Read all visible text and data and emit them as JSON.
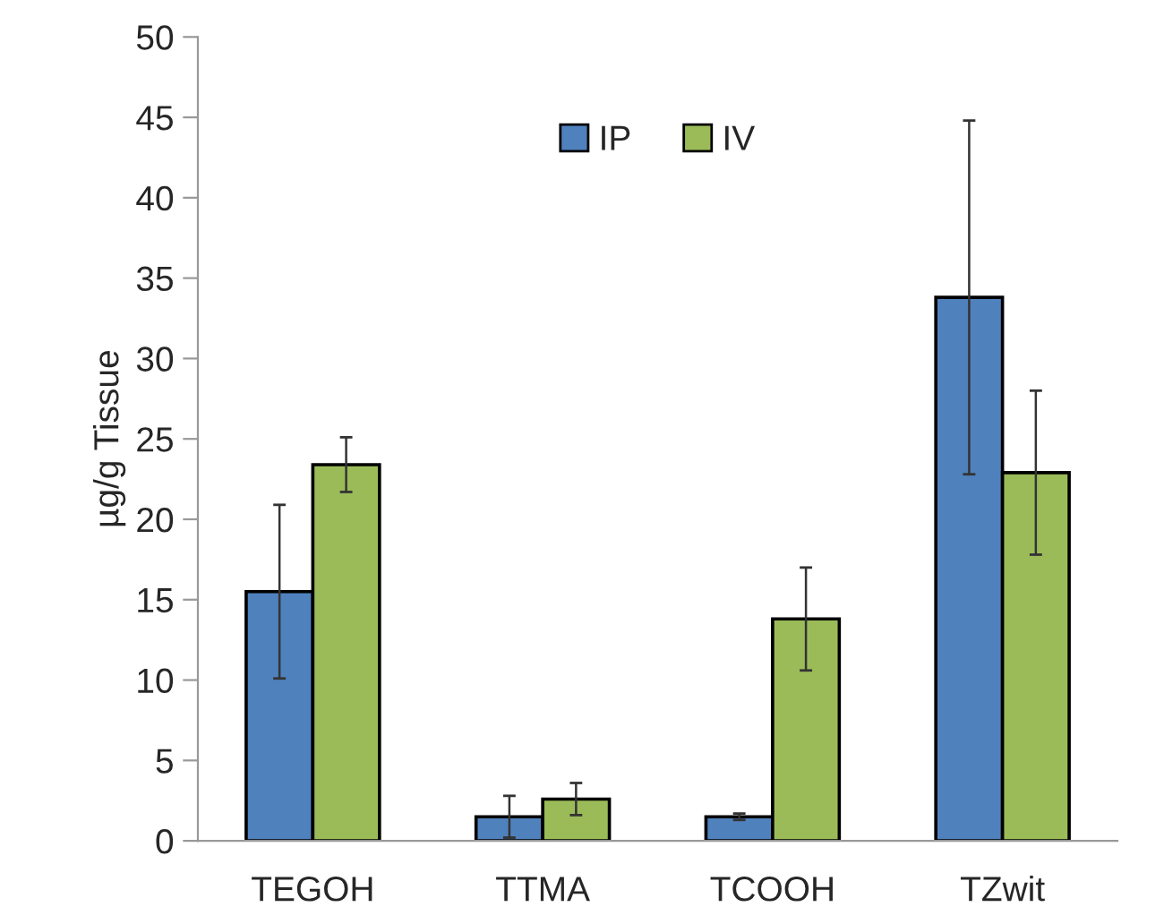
{
  "chart_data": {
    "type": "bar",
    "ylabel": "µg/g Tissue",
    "categories": [
      "TEGOH",
      "TTMA",
      "TCOOH",
      "TZwit"
    ],
    "series": [
      {
        "name": "IP",
        "color": "#4f81bd",
        "values": [
          15.5,
          1.5,
          1.5,
          33.8
        ],
        "errors": [
          5.4,
          1.3,
          0.2,
          11.0
        ]
      },
      {
        "name": "IV",
        "color": "#9bbb59",
        "values": [
          23.4,
          2.6,
          13.8,
          22.9
        ],
        "errors": [
          1.7,
          1.0,
          3.2,
          5.1
        ]
      }
    ],
    "ylim": [
      0,
      50
    ],
    "yticks": [
      0,
      5,
      10,
      15,
      20,
      25,
      30,
      35,
      40,
      45,
      50
    ],
    "grid": false,
    "legend": "top"
  }
}
